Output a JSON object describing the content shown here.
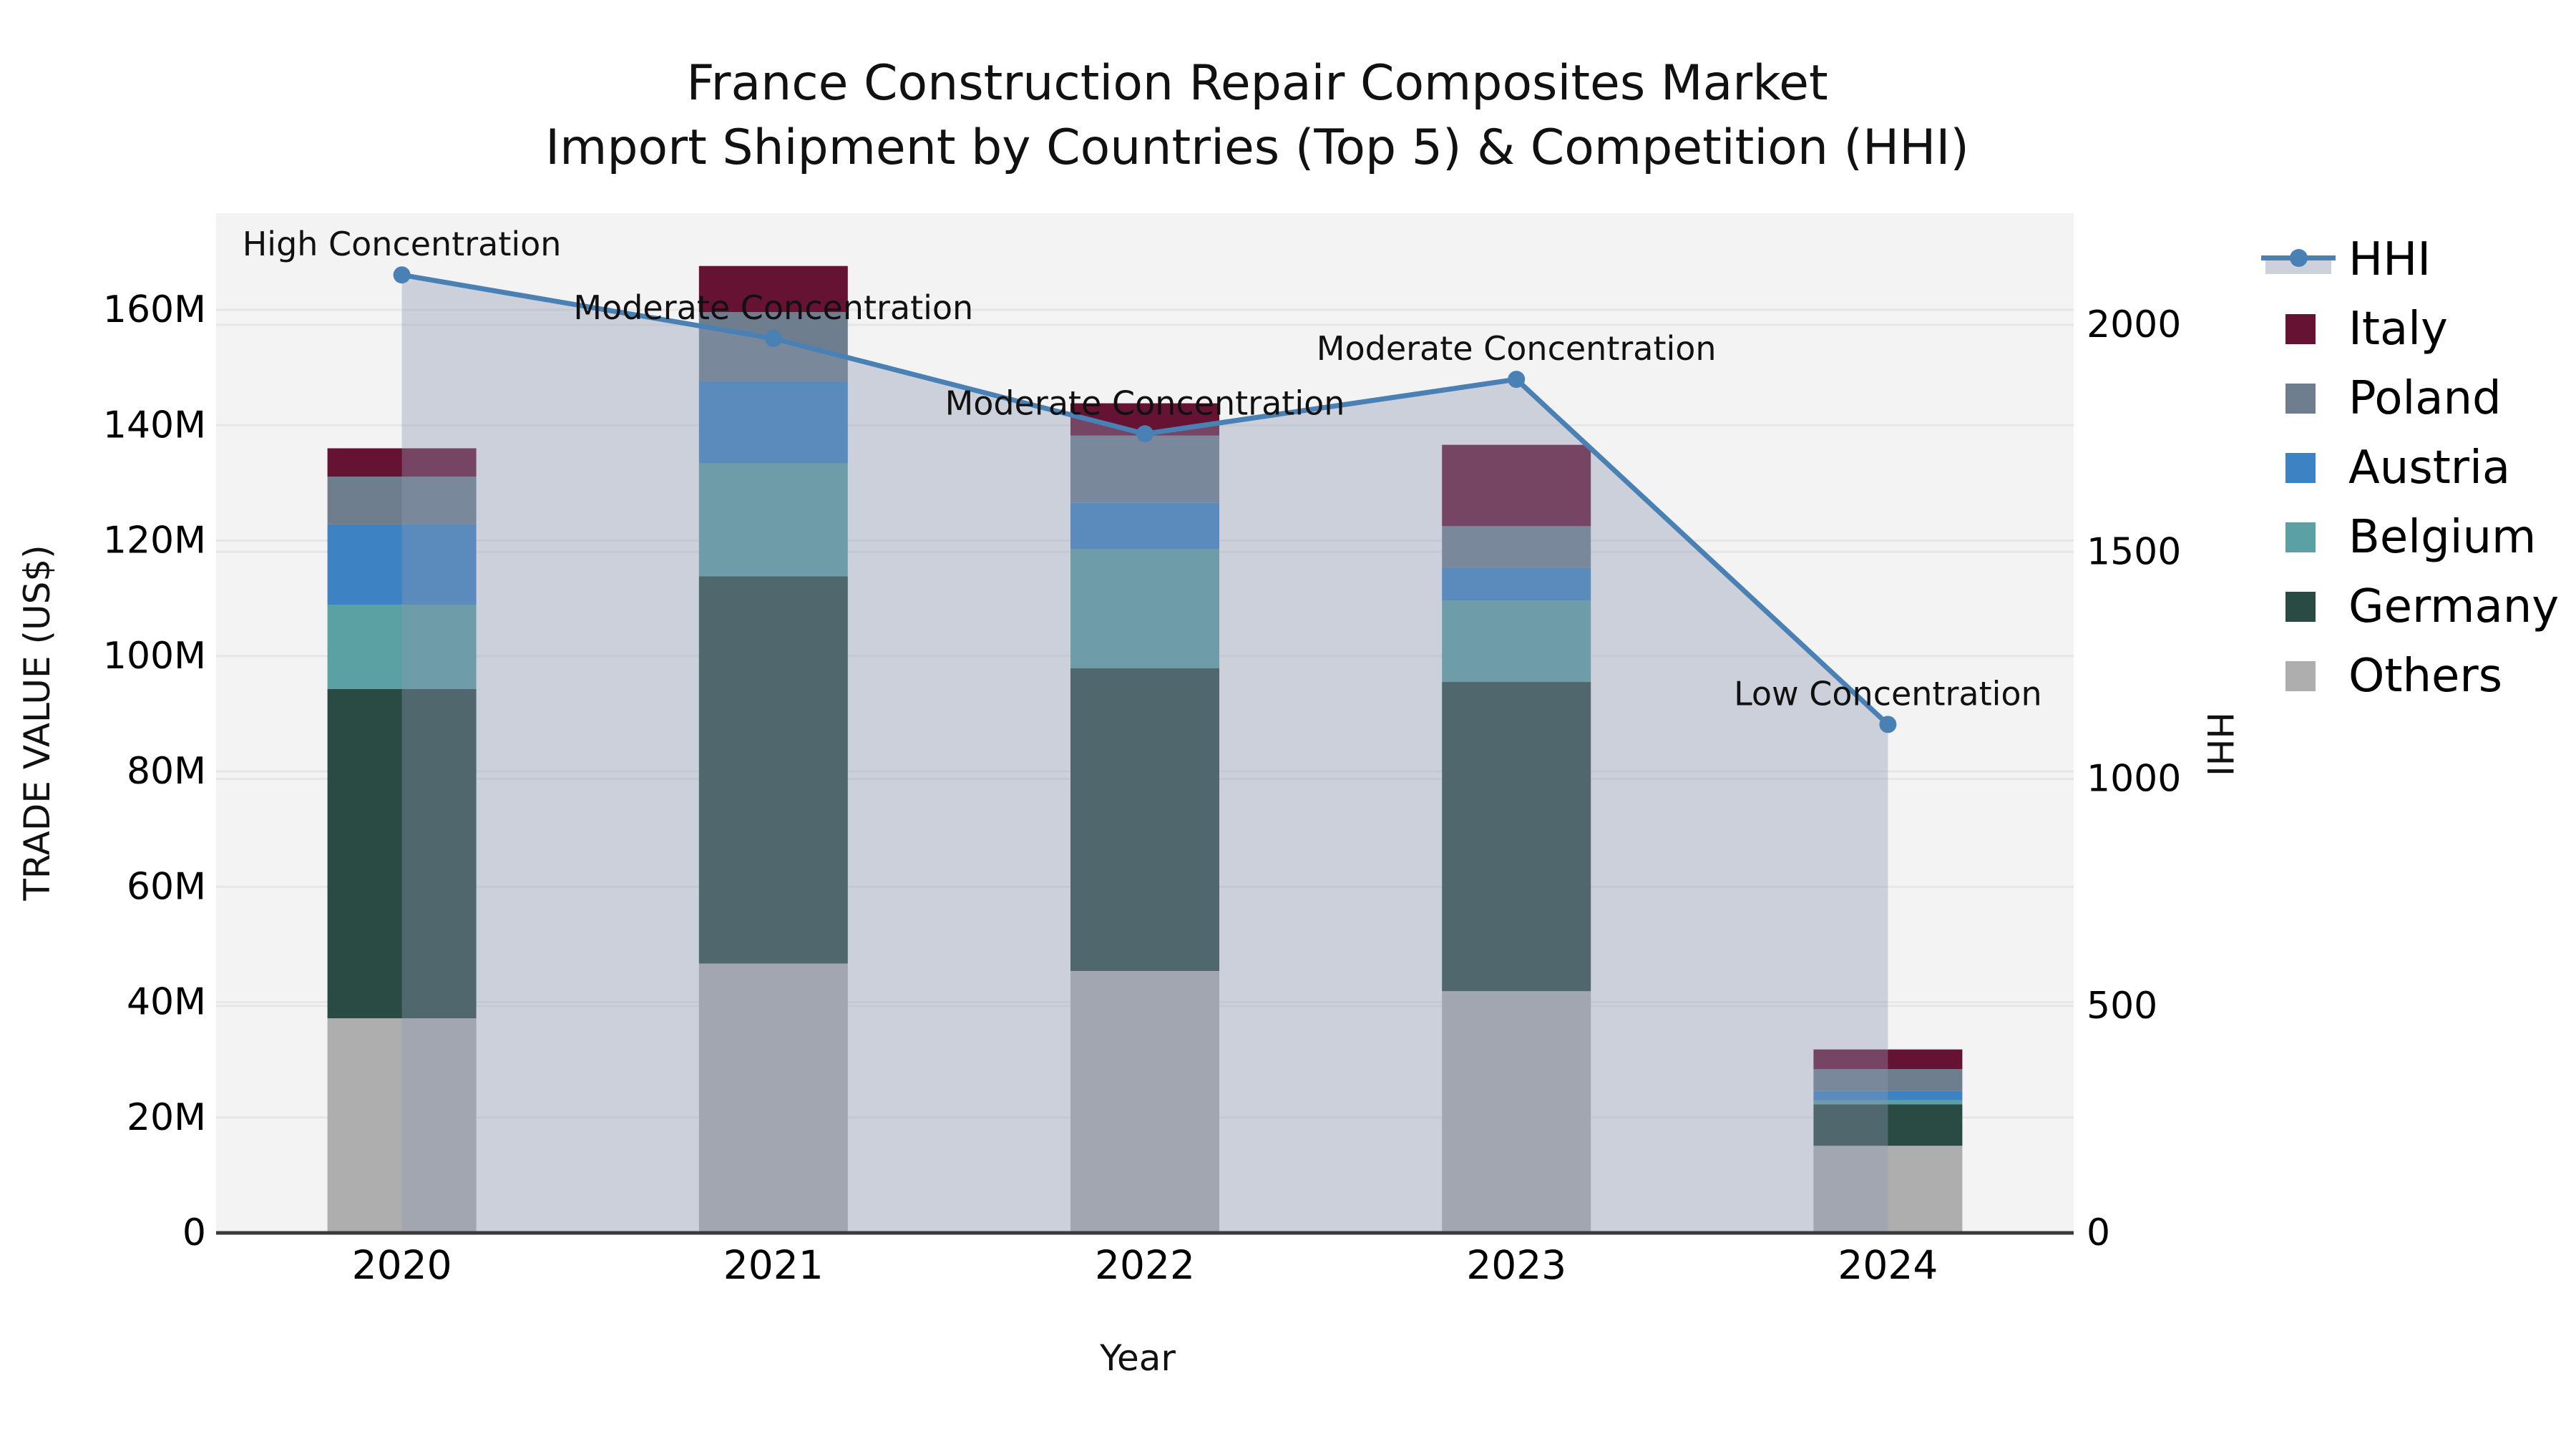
{
  "title": {
    "line1": "France Construction Repair Composites Market",
    "line2": "Import Shipment by Countries (Top 5) & Competition (HHI)"
  },
  "axes": {
    "y_left_title": "TRADE VALUE (US$)",
    "y_right_title": "HHI",
    "x_title": "Year",
    "y_left_ticks": [
      "0",
      "20M",
      "40M",
      "60M",
      "80M",
      "100M",
      "120M",
      "140M",
      "160M"
    ],
    "y_right_ticks": [
      "0",
      "500",
      "1000",
      "1500",
      "2000"
    ]
  },
  "legend": [
    "HHI",
    "Italy",
    "Poland",
    "Austria",
    "Belgium",
    "Germany",
    "Others"
  ],
  "colors": {
    "plot_background": "#f3f3f3",
    "gridline": "#e6e6e6",
    "axis_line": "#3a3a3a",
    "text": "#000000"
  },
  "chart_data": {
    "type": "bar",
    "subtype": "stacked-bars-with-line-overlay",
    "title": "France Construction Repair Composites Market\nImport Shipment by Countries (Top 5) & Competition (HHI)",
    "xlabel": "Year",
    "ylabel_left": "TRADE VALUE (US$)",
    "ylabel_right": "HHI",
    "categories": [
      "2020",
      "2021",
      "2022",
      "2023",
      "2024"
    ],
    "stack_order_bottom_to_top": [
      "Others",
      "Germany",
      "Belgium",
      "Austria",
      "Poland",
      "Italy"
    ],
    "series": [
      {
        "name": "Italy",
        "color": "#661232",
        "values": [
          4.9,
          8.0,
          5.6,
          14.1,
          3.4
        ]
      },
      {
        "name": "Poland",
        "color": "#6f7e8e",
        "values": [
          8.3,
          12.0,
          11.6,
          7.2,
          3.8
        ]
      },
      {
        "name": "Austria",
        "color": "#3d82c3",
        "values": [
          13.9,
          14.2,
          8.1,
          5.7,
          1.6
        ]
      },
      {
        "name": "Belgium",
        "color": "#5ba1a3",
        "values": [
          14.6,
          19.6,
          20.6,
          14.1,
          0.7
        ]
      },
      {
        "name": "Germany",
        "color": "#2a4a44",
        "values": [
          57.1,
          67.1,
          52.5,
          53.6,
          7.2
        ]
      },
      {
        "name": "Others",
        "color": "#aeaeae",
        "values": [
          37.2,
          46.7,
          45.4,
          41.9,
          15.1
        ]
      }
    ],
    "bar_totals_musd": [
      136.0,
      167.6,
      143.8,
      136.6,
      31.8
    ],
    "line": {
      "name": "HHI",
      "color": "#4a81b5",
      "band_color": "#8d98b4",
      "band_opacity": 0.38,
      "values": [
        2110,
        1970,
        1760,
        1880,
        1120
      ]
    },
    "annotations": [
      {
        "category": "2020",
        "text": "High Concentration"
      },
      {
        "category": "2021",
        "text": "Moderate Concentration"
      },
      {
        "category": "2022",
        "text": "Moderate Concentration"
      },
      {
        "category": "2023",
        "text": "Moderate Concentration"
      },
      {
        "category": "2024",
        "text": "Low Concentration"
      }
    ],
    "y_left": {
      "unit": "M US$",
      "ticks": [
        0,
        20,
        40,
        60,
        80,
        100,
        120,
        140,
        160
      ],
      "range": [
        0,
        176.5
      ]
    },
    "y_right": {
      "unit": "HHI",
      "ticks": [
        0,
        500,
        1000,
        1500,
        2000
      ],
      "range": [
        0,
        2245
      ]
    },
    "grid": true,
    "legend_position": "right-outside"
  }
}
